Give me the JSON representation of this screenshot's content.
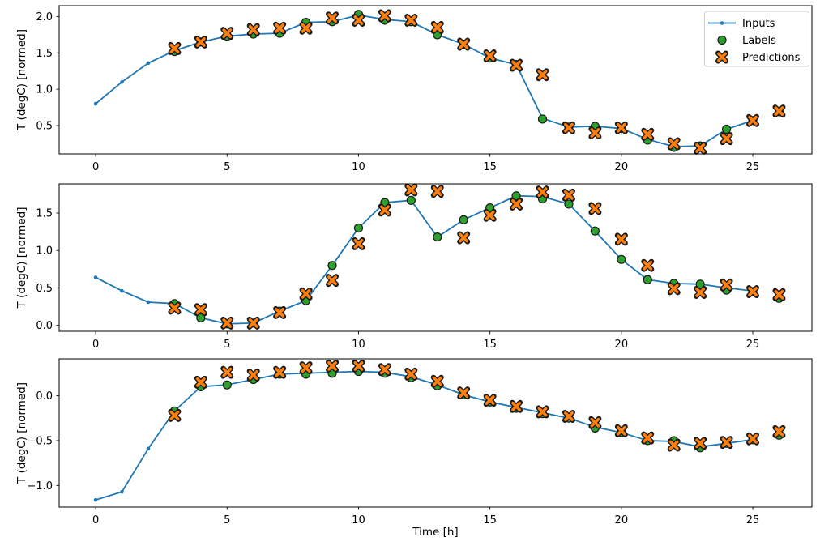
{
  "figure": {
    "background": "#ffffff",
    "axis_color": "#000000",
    "marker_edge_color": "#1a1a1a",
    "xlabel": "Time [h]",
    "x_ticks": [
      0,
      5,
      10,
      15,
      20,
      25
    ],
    "xlim": [
      -1.39,
      27.25
    ],
    "legend": {
      "position": "upper-right",
      "items": [
        {
          "label": "Inputs",
          "marker": "line-dot",
          "color": "#1f77b4"
        },
        {
          "label": "Labels",
          "marker": "circle",
          "color": "#2ca02c"
        },
        {
          "label": "Predictions",
          "marker": "x-cross",
          "color": "#ff7f0e"
        }
      ]
    }
  },
  "chart_data": [
    {
      "type": "line",
      "title": "",
      "ylabel": "T (degC) [normed]",
      "xlabel": "",
      "ylim": [
        0.11,
        2.15
      ],
      "y_ticks": [
        0.5,
        1.0,
        1.5,
        2.0
      ],
      "grid": false,
      "show_legend": true,
      "series": [
        {
          "name": "Inputs",
          "style": "line-dot",
          "color": "#1f77b4",
          "x": [
            0,
            1,
            2,
            3,
            4,
            5,
            6,
            7,
            8,
            9,
            10,
            11,
            12,
            13,
            14,
            15,
            16,
            17,
            18,
            19,
            20,
            21,
            22,
            23,
            24,
            25
          ],
          "values": [
            0.8,
            1.1,
            1.36,
            1.53,
            1.65,
            1.73,
            1.76,
            1.77,
            1.92,
            1.93,
            2.02,
            1.96,
            1.93,
            1.75,
            1.62,
            1.43,
            1.34,
            0.6,
            0.48,
            0.49,
            0.46,
            0.31,
            0.21,
            0.22,
            0.45,
            0.57
          ]
        },
        {
          "name": "Labels",
          "style": "scatter-circle",
          "color": "#2ca02c",
          "x": [
            3,
            4,
            5,
            6,
            7,
            8,
            9,
            10,
            11,
            12,
            13,
            14,
            15,
            16,
            17,
            18,
            19,
            20,
            21,
            22,
            23,
            24,
            25,
            26
          ],
          "values": [
            1.52,
            1.65,
            1.73,
            1.76,
            1.77,
            1.92,
            1.93,
            2.03,
            1.95,
            1.93,
            1.75,
            1.62,
            1.43,
            1.34,
            0.59,
            0.48,
            0.49,
            0.46,
            0.3,
            0.2,
            0.22,
            0.45,
            0.57,
            0.69
          ]
        },
        {
          "name": "Predictions",
          "style": "scatter-x",
          "color": "#ff7f0e",
          "x": [
            3,
            4,
            5,
            6,
            7,
            8,
            9,
            10,
            11,
            12,
            13,
            14,
            15,
            16,
            17,
            18,
            19,
            20,
            21,
            22,
            23,
            24,
            25,
            26
          ],
          "values": [
            1.56,
            1.65,
            1.77,
            1.82,
            1.84,
            1.84,
            1.98,
            1.95,
            2.01,
            1.95,
            1.85,
            1.62,
            1.46,
            1.33,
            1.2,
            0.47,
            0.4,
            0.47,
            0.38,
            0.25,
            0.19,
            0.32,
            0.57,
            0.7
          ]
        }
      ]
    },
    {
      "type": "line",
      "title": "",
      "ylabel": "T (degC) [normed]",
      "xlabel": "",
      "ylim": [
        -0.08,
        1.89
      ],
      "y_ticks": [
        0.0,
        0.5,
        1.0,
        1.5
      ],
      "grid": false,
      "show_legend": false,
      "series": [
        {
          "name": "Inputs",
          "style": "line-dot",
          "color": "#1f77b4",
          "x": [
            0,
            1,
            2,
            3,
            4,
            5,
            6,
            7,
            8,
            9,
            10,
            11,
            12,
            13,
            14,
            15,
            16,
            17,
            18,
            19,
            20,
            21,
            22,
            23,
            24,
            25
          ],
          "values": [
            0.64,
            0.46,
            0.31,
            0.29,
            0.1,
            0.02,
            0.03,
            0.19,
            0.33,
            0.8,
            1.3,
            1.64,
            1.67,
            1.18,
            1.41,
            1.57,
            1.73,
            1.72,
            1.62,
            1.26,
            0.88,
            0.61,
            0.56,
            0.55,
            0.5,
            0.46
          ]
        },
        {
          "name": "Labels",
          "style": "scatter-circle",
          "color": "#2ca02c",
          "x": [
            3,
            4,
            5,
            6,
            7,
            8,
            9,
            10,
            11,
            12,
            13,
            14,
            15,
            16,
            17,
            18,
            19,
            20,
            21,
            22,
            23,
            24,
            25,
            26
          ],
          "values": [
            0.29,
            0.1,
            0.02,
            0.03,
            0.19,
            0.33,
            0.8,
            1.3,
            1.64,
            1.67,
            1.18,
            1.41,
            1.57,
            1.73,
            1.69,
            1.62,
            1.26,
            0.88,
            0.61,
            0.56,
            0.55,
            0.47,
            0.45,
            0.36
          ]
        },
        {
          "name": "Predictions",
          "style": "scatter-x",
          "color": "#ff7f0e",
          "x": [
            3,
            4,
            5,
            6,
            7,
            8,
            9,
            10,
            11,
            12,
            13,
            14,
            15,
            16,
            17,
            18,
            19,
            20,
            21,
            22,
            23,
            24,
            25,
            26
          ],
          "values": [
            0.23,
            0.21,
            0.03,
            0.03,
            0.17,
            0.42,
            0.6,
            1.09,
            1.54,
            1.81,
            1.79,
            1.17,
            1.47,
            1.62,
            1.78,
            1.74,
            1.56,
            1.15,
            0.8,
            0.49,
            0.44,
            0.54,
            0.45,
            0.41
          ]
        }
      ]
    },
    {
      "type": "line",
      "title": "",
      "ylabel": "T (degC) [normed]",
      "xlabel": "Time [h]",
      "ylim": [
        -1.24,
        0.41
      ],
      "y_ticks": [
        -1.0,
        -0.5,
        0.0
      ],
      "grid": false,
      "show_legend": false,
      "series": [
        {
          "name": "Inputs",
          "style": "line-dot",
          "color": "#1f77b4",
          "x": [
            0,
            1,
            2,
            3,
            4,
            5,
            6,
            7,
            8,
            9,
            10,
            11,
            12,
            13,
            14,
            15,
            16,
            17,
            18,
            19,
            20,
            21,
            22,
            23,
            24,
            25
          ],
          "values": [
            -1.16,
            -1.07,
            -0.59,
            -0.17,
            0.1,
            0.12,
            0.18,
            0.24,
            0.25,
            0.26,
            0.27,
            0.26,
            0.21,
            0.12,
            0.01,
            -0.07,
            -0.13,
            -0.19,
            -0.25,
            -0.35,
            -0.41,
            -0.5,
            -0.51,
            -0.57,
            -0.53,
            -0.49
          ]
        },
        {
          "name": "Labels",
          "style": "scatter-circle",
          "color": "#2ca02c",
          "x": [
            3,
            4,
            5,
            6,
            7,
            8,
            9,
            10,
            11,
            12,
            13,
            14,
            15,
            16,
            17,
            18,
            19,
            20,
            21,
            22,
            23,
            24,
            25,
            26
          ],
          "values": [
            -0.17,
            0.1,
            0.12,
            0.18,
            0.24,
            0.24,
            0.25,
            0.27,
            0.25,
            0.2,
            0.11,
            0.01,
            -0.07,
            -0.14,
            -0.2,
            -0.25,
            -0.36,
            -0.41,
            -0.5,
            -0.5,
            -0.58,
            -0.53,
            -0.49,
            -0.44
          ]
        },
        {
          "name": "Predictions",
          "style": "scatter-x",
          "color": "#ff7f0e",
          "x": [
            3,
            4,
            5,
            6,
            7,
            8,
            9,
            10,
            11,
            12,
            13,
            14,
            15,
            16,
            17,
            18,
            19,
            20,
            21,
            22,
            23,
            24,
            25,
            26
          ],
          "values": [
            -0.22,
            0.15,
            0.26,
            0.23,
            0.26,
            0.31,
            0.33,
            0.33,
            0.29,
            0.24,
            0.16,
            0.03,
            -0.05,
            -0.12,
            -0.18,
            -0.23,
            -0.3,
            -0.39,
            -0.47,
            -0.55,
            -0.53,
            -0.52,
            -0.48,
            -0.4
          ]
        }
      ]
    }
  ]
}
